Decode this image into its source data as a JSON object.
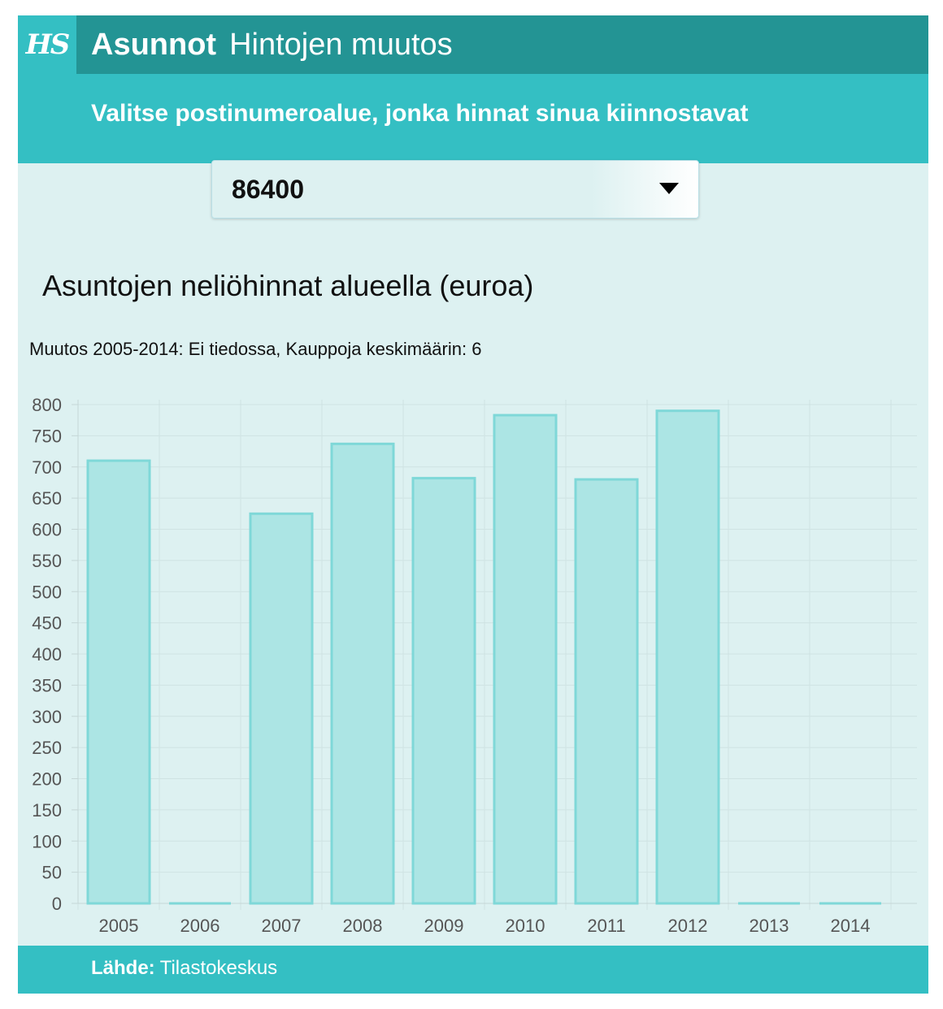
{
  "header": {
    "logo": "HS",
    "brand": "Asunnot",
    "title": "Hintojen muutos"
  },
  "subheader": {
    "instruction": "Valitse postinumeroalue, jonka hinnat sinua kiinnostavat"
  },
  "selector": {
    "value": "86400",
    "icon": "dropdown-arrow-icon"
  },
  "chart_title": "Asuntojen neliöhinnat alueella (euroa)",
  "chart_summary": "Muutos 2005-2014: Ei tiedossa, Kauppoja keskimäärin: 6",
  "chart_data": {
    "type": "bar",
    "categories": [
      "2005",
      "2006",
      "2007",
      "2008",
      "2009",
      "2010",
      "2011",
      "2012",
      "2013",
      "2014"
    ],
    "values": [
      710,
      0,
      625,
      737,
      682,
      783,
      680,
      790,
      0,
      0
    ],
    "ylim": [
      0,
      800
    ],
    "yticks": [
      0,
      50,
      100,
      150,
      200,
      250,
      300,
      350,
      400,
      450,
      500,
      550,
      600,
      650,
      700,
      750,
      800
    ],
    "grid": true,
    "bar_fill": "#ace5e4",
    "bar_stroke": "#7fd8d8",
    "grid_color": "#cfe3e3",
    "axis_color": "#c5d6d6"
  },
  "footer": {
    "source_label": "Lähde:",
    "source": "Tilastokeskus"
  }
}
